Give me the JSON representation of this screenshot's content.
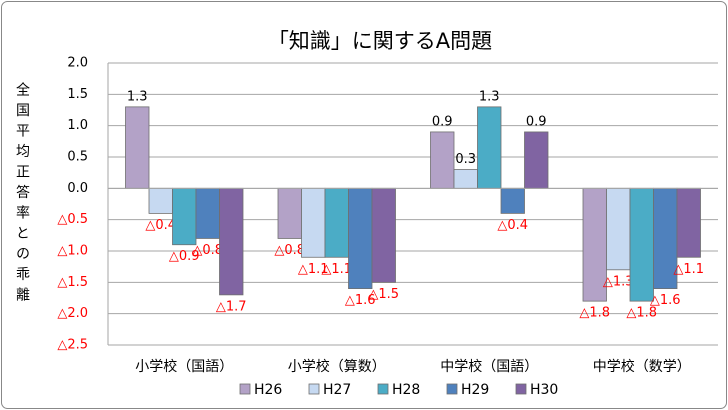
{
  "chart_data": {
    "type": "bar",
    "title": "「知識」に関するA問題",
    "y_label": "全国平均正答率との乖離",
    "categories": [
      "小学校（国語）",
      "小学校（算数）",
      "中学校（国語）",
      "中学校（数学）"
    ],
    "series": [
      {
        "name": "H26",
        "color": "#b3a2c7",
        "values": [
          1.3,
          -0.8,
          0.9,
          -1.8
        ],
        "value_labels": [
          "1.3",
          "△0.8",
          "0.9",
          "△1.8"
        ]
      },
      {
        "name": "H27",
        "color": "#c6d9f1",
        "values": [
          -0.4,
          -1.1,
          0.3,
          -1.3
        ],
        "value_labels": [
          "△0.4",
          "△1.1",
          "0.3",
          "△1.3"
        ]
      },
      {
        "name": "H28",
        "color": "#4bacc6",
        "values": [
          -0.9,
          -1.1,
          1.3,
          -1.8
        ],
        "value_labels": [
          "△0.9",
          "△1.1",
          "1.3",
          "△1.8"
        ]
      },
      {
        "name": "H29",
        "color": "#4f81bd",
        "values": [
          -0.8,
          -1.6,
          -0.4,
          -1.6
        ],
        "value_labels": [
          "△0.8",
          "△1.6",
          "△0.4",
          "△1.6"
        ]
      },
      {
        "name": "H30",
        "color": "#8064a2",
        "values": [
          -1.7,
          -1.5,
          0.9,
          -1.1
        ],
        "value_labels": [
          "△1.7",
          "△1.5",
          "0.9",
          "△1.1"
        ]
      }
    ],
    "ylim": [
      -2.5,
      2.0
    ],
    "yticks": [
      {
        "value": -2.5,
        "label": "△2.5"
      },
      {
        "value": -2.0,
        "label": "△2.0"
      },
      {
        "value": -1.5,
        "label": "△1.5"
      },
      {
        "value": -1.0,
        "label": "△1.0"
      },
      {
        "value": -0.5,
        "label": "△0.5"
      },
      {
        "value": 0,
        "label": "0.0"
      },
      0.5,
      {
        "value": 1.0,
        "label": "1.0"
      },
      1.5,
      {
        "value": 2.0,
        "label": "2.0"
      }
    ],
    "grid": true,
    "legend": "bottom"
  }
}
